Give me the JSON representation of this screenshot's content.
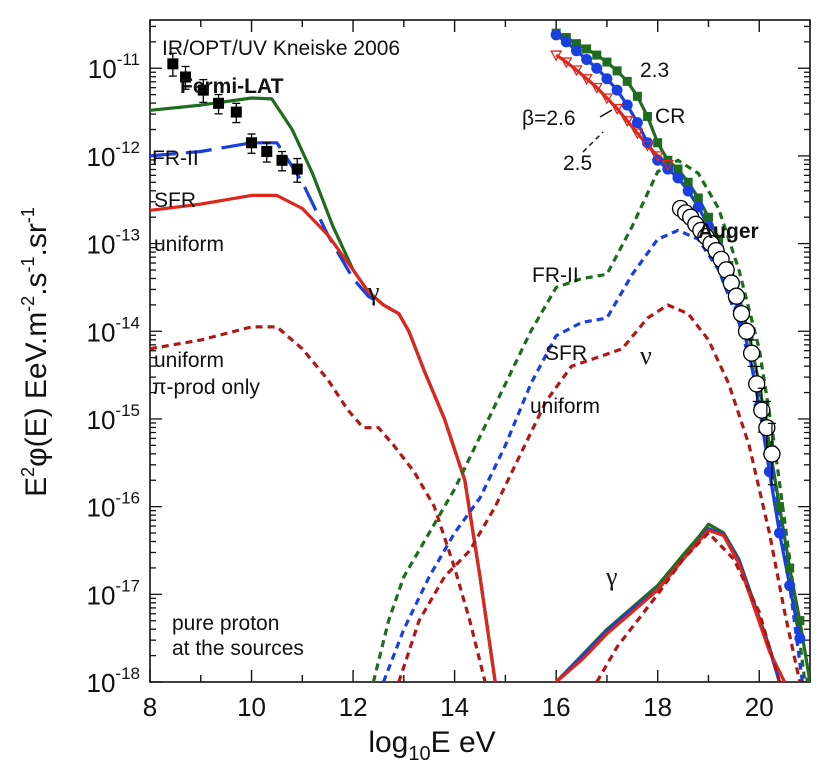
{
  "chart_data": {
    "type": "line",
    "title": "IR/OPT/UV Kneiske 2006",
    "xlabel": "log10E eV",
    "ylabel": "E2φ(E) EeV.m-2.s-1.sr-1",
    "xlim": [
      8,
      21
    ],
    "ylim_log10": [
      -18,
      -10.45
    ],
    "log_y": true,
    "x_ticks": [
      8,
      10,
      12,
      14,
      16,
      18,
      20
    ],
    "y_ticks": [
      {
        "exp": -11,
        "base": "10",
        "power": "-11"
      },
      {
        "exp": -12,
        "base": "10",
        "power": "-12"
      },
      {
        "exp": -13,
        "base": "10",
        "power": "-13"
      },
      {
        "exp": -14,
        "base": "10",
        "power": "-14"
      },
      {
        "exp": -15,
        "base": "10",
        "power": "-15"
      },
      {
        "exp": -16,
        "base": "10",
        "power": "-16"
      },
      {
        "exp": -17,
        "base": "10",
        "power": "-17"
      },
      {
        "exp": -18,
        "base": "10",
        "power": "-18"
      }
    ],
    "colors": {
      "green": "#1f6b1f",
      "blue": "#1a3fe0",
      "red": "#e0261a",
      "darkred": "#b01818",
      "black": "#000000"
    },
    "series": [
      {
        "key": "gamma-fr2",
        "color": "green",
        "dash": "solid",
        "x": [
          8.0,
          9.0,
          10.0,
          10.4,
          10.8,
          11.2,
          11.6,
          12.0,
          12.3,
          12.6,
          12.9,
          13.1,
          13.4,
          13.8,
          14.2,
          14.5,
          14.8
        ],
        "y": [
          -11.48,
          -11.42,
          -11.34,
          -11.35,
          -11.7,
          -12.2,
          -12.8,
          -13.3,
          -13.55,
          -13.7,
          -13.8,
          -14.0,
          -14.45,
          -15.0,
          -15.7,
          -16.8,
          -18.0
        ]
      },
      {
        "key": "gamma-sfr",
        "color": "blue",
        "dash": "longdash",
        "x": [
          8.0,
          9.0,
          10.0,
          10.5,
          11.0,
          11.5,
          12.0,
          12.3,
          12.6,
          12.9,
          13.1,
          13.4,
          13.8,
          14.2,
          14.5,
          14.8
        ],
        "y": [
          -12.0,
          -11.95,
          -11.85,
          -11.85,
          -12.3,
          -12.9,
          -13.4,
          -13.6,
          -13.7,
          -13.8,
          -14.0,
          -14.45,
          -15.0,
          -15.7,
          -16.8,
          -18.0
        ]
      },
      {
        "key": "gamma-uniform",
        "color": "red",
        "dash": "solid",
        "x": [
          8.0,
          9.0,
          10.0,
          10.5,
          11.0,
          11.5,
          12.0,
          12.3,
          12.6,
          12.9,
          13.1,
          13.4,
          13.8,
          14.2,
          14.5,
          14.8
        ],
        "y": [
          -12.62,
          -12.55,
          -12.45,
          -12.45,
          -12.6,
          -12.9,
          -13.3,
          -13.55,
          -13.7,
          -13.8,
          -14.0,
          -14.45,
          -15.0,
          -15.7,
          -16.8,
          -18.0
        ]
      },
      {
        "key": "gamma-piprod",
        "color": "darkred",
        "dash": "shortdash",
        "x": [
          8.0,
          9.0,
          10.0,
          10.5,
          11.0,
          11.5,
          11.9,
          12.2,
          12.5,
          12.8,
          13.2,
          13.6,
          14.0,
          14.3,
          14.6
        ],
        "y": [
          -14.2,
          -14.1,
          -13.95,
          -13.95,
          -14.2,
          -14.55,
          -14.9,
          -15.1,
          -15.1,
          -15.3,
          -15.6,
          -16.0,
          -16.7,
          -17.3,
          -18.0
        ]
      },
      {
        "key": "nu-fr2",
        "color": "green",
        "dash": "shortdash",
        "x": [
          12.4,
          12.7,
          13.0,
          13.5,
          14.0,
          14.5,
          15.0,
          15.5,
          16.0,
          16.5,
          17.0,
          17.5,
          18.0,
          18.4,
          18.8,
          19.2,
          19.6,
          20.0,
          20.3,
          20.6,
          20.9
        ],
        "y": [
          -18.0,
          -17.3,
          -16.8,
          -16.3,
          -15.8,
          -15.2,
          -14.6,
          -14.0,
          -13.5,
          -13.4,
          -13.35,
          -12.8,
          -12.18,
          -12.05,
          -12.2,
          -12.6,
          -13.3,
          -14.2,
          -15.3,
          -16.6,
          -18.0
        ]
      },
      {
        "key": "nu-sfr",
        "color": "blue",
        "dash": "shortdash",
        "x": [
          12.6,
          13.0,
          13.5,
          14.0,
          14.5,
          15.0,
          15.5,
          16.0,
          16.5,
          17.0,
          17.5,
          18.0,
          18.4,
          18.8,
          19.2,
          19.6,
          20.0,
          20.3,
          20.6,
          20.85
        ],
        "y": [
          -18.0,
          -17.4,
          -16.8,
          -16.3,
          -15.9,
          -15.3,
          -14.6,
          -14.05,
          -13.9,
          -13.85,
          -13.35,
          -12.95,
          -12.85,
          -12.95,
          -13.3,
          -13.9,
          -14.7,
          -15.7,
          -16.9,
          -18.0
        ]
      },
      {
        "key": "nu-uniform",
        "color": "darkred",
        "dash": "shortdash",
        "x": [
          12.9,
          13.3,
          13.8,
          14.3,
          14.8,
          15.3,
          15.8,
          16.3,
          16.8,
          17.3,
          17.8,
          18.2,
          18.6,
          19.0,
          19.4,
          19.8,
          20.2,
          20.5,
          20.8
        ],
        "y": [
          -18.0,
          -17.3,
          -16.8,
          -16.5,
          -16.0,
          -15.4,
          -14.8,
          -14.4,
          -14.3,
          -14.2,
          -13.85,
          -13.7,
          -13.8,
          -14.1,
          -14.6,
          -15.3,
          -16.3,
          -17.2,
          -18.0
        ]
      },
      {
        "key": "gamma-hi-green",
        "color": "green",
        "dash": "solid",
        "x": [
          16.0,
          16.5,
          17.0,
          17.5,
          18.0,
          18.5,
          18.8,
          19.0,
          19.3,
          19.6,
          19.9,
          20.2,
          20.4
        ],
        "y": [
          -18.0,
          -17.7,
          -17.4,
          -17.15,
          -16.9,
          -16.55,
          -16.35,
          -16.2,
          -16.3,
          -16.6,
          -17.1,
          -17.6,
          -18.0
        ]
      },
      {
        "key": "gamma-hi-blue",
        "color": "blue",
        "dash": "solid",
        "x": [
          16.0,
          16.5,
          17.0,
          17.5,
          18.0,
          18.5,
          18.8,
          19.0,
          19.3,
          19.6,
          19.9,
          20.2,
          20.4
        ],
        "y": [
          -18.0,
          -17.72,
          -17.42,
          -17.17,
          -16.95,
          -16.6,
          -16.4,
          -16.25,
          -16.32,
          -16.62,
          -17.12,
          -17.62,
          -18.0
        ]
      },
      {
        "key": "gamma-hi-red",
        "color": "red",
        "dash": "solid",
        "x": [
          16.0,
          16.5,
          17.0,
          17.5,
          18.0,
          18.5,
          18.8,
          19.0,
          19.3,
          19.6,
          19.9,
          20.2,
          20.5
        ],
        "y": [
          -18.0,
          -17.75,
          -17.45,
          -17.2,
          -16.95,
          -16.6,
          -16.4,
          -16.27,
          -16.33,
          -16.65,
          -17.15,
          -17.65,
          -18.0
        ]
      },
      {
        "key": "nu-hi-red",
        "color": "darkred",
        "dash": "shortdash",
        "x": [
          16.8,
          17.2,
          17.6,
          18.0,
          18.5,
          19.0,
          19.5,
          20.0,
          20.4
        ],
        "y": [
          -18.0,
          -17.6,
          -17.3,
          -17.0,
          -16.6,
          -16.3,
          -16.6,
          -17.2,
          -18.0
        ]
      },
      {
        "key": "cr-green",
        "color": "green",
        "dash": "solid",
        "markers": "square",
        "x": [
          16.0,
          16.2,
          16.4,
          16.6,
          16.8,
          17.0,
          17.2,
          17.4,
          17.6,
          17.8,
          18.0,
          18.2,
          18.4,
          18.6,
          18.8,
          19.0,
          19.2,
          19.4,
          19.6,
          19.8,
          20.0,
          20.2,
          20.4,
          20.6,
          20.8,
          21.0
        ],
        "y": [
          -10.6,
          -10.65,
          -10.72,
          -10.78,
          -10.85,
          -10.93,
          -11.03,
          -11.15,
          -11.32,
          -11.55,
          -11.85,
          -12.05,
          -12.15,
          -12.3,
          -12.48,
          -12.7,
          -12.95,
          -13.25,
          -13.6,
          -14.05,
          -14.6,
          -15.3,
          -16.0,
          -16.7,
          -17.3,
          -18.0
        ]
      },
      {
        "key": "cr-blue",
        "color": "blue",
        "dash": "solid",
        "markers": "circle",
        "x": [
          16.0,
          16.2,
          16.4,
          16.6,
          16.8,
          17.0,
          17.2,
          17.4,
          17.6,
          17.8,
          18.0,
          18.2,
          18.4,
          18.6,
          18.8,
          19.0,
          19.2,
          19.4,
          19.6,
          19.8,
          20.0,
          20.2,
          20.4,
          20.6,
          20.8
        ],
        "y": [
          -10.62,
          -10.7,
          -10.8,
          -10.9,
          -11.0,
          -11.12,
          -11.25,
          -11.42,
          -11.62,
          -11.85,
          -12.05,
          -12.15,
          -12.25,
          -12.4,
          -12.58,
          -12.8,
          -13.05,
          -13.35,
          -13.75,
          -14.25,
          -14.85,
          -15.6,
          -16.3,
          -16.9,
          -17.5
        ]
      },
      {
        "key": "cr-red",
        "color": "red",
        "dash": "solid",
        "markers": "triangle",
        "x": [
          16.0,
          16.2,
          16.4,
          16.6,
          16.8,
          17.0,
          17.2,
          17.4,
          17.6,
          17.8,
          18.0,
          18.2
        ],
        "y": [
          -10.85,
          -10.93,
          -11.02,
          -11.12,
          -11.22,
          -11.34,
          -11.46,
          -11.6,
          -11.74,
          -11.88,
          -12.0,
          -12.1
        ]
      }
    ],
    "fermi_lat": {
      "x": [
        8.45,
        8.7,
        9.05,
        9.35,
        9.7,
        10.0,
        10.3,
        10.6,
        10.9
      ],
      "y": [
        -10.95,
        -11.1,
        -11.25,
        -11.4,
        -11.5,
        -11.85,
        -11.95,
        -12.05,
        -12.15
      ],
      "err_up": [
        0.12,
        0.12,
        0.12,
        0.1,
        0.1,
        0.1,
        0.1,
        0.1,
        0.12
      ],
      "err_dn": [
        0.14,
        0.14,
        0.14,
        0.12,
        0.12,
        0.12,
        0.12,
        0.12,
        0.15
      ]
    },
    "auger": {
      "x": [
        18.45,
        18.55,
        18.65,
        18.75,
        18.85,
        18.95,
        19.05,
        19.15,
        19.25,
        19.35,
        19.45,
        19.55,
        19.65,
        19.75,
        19.85,
        19.95,
        20.05,
        20.15,
        20.25
      ],
      "y": [
        -12.6,
        -12.65,
        -12.7,
        -12.78,
        -12.85,
        -12.92,
        -13.0,
        -13.08,
        -13.18,
        -13.3,
        -13.45,
        -13.6,
        -13.8,
        -14.0,
        -14.25,
        -14.6,
        -14.9,
        -15.1,
        -15.4
      ]
    },
    "labels": {
      "title": "IR/OPT/UV Kneiske 2006",
      "fermi": "Fermi-LAT",
      "fr2_left": "FR-II",
      "sfr_left": "SFR",
      "uniform_left": "uniform",
      "uniform_pi_1": "uniform",
      "uniform_pi_2": "π-prod only",
      "gamma_mid": "γ",
      "fr2_right": "FR-II",
      "sfr_right": "SFR",
      "uniform_right": "uniform",
      "nu": "ν",
      "gamma_low": "γ",
      "index_23": "2.3",
      "beta": "β=2.6",
      "cr": "CR",
      "index_25": "2.5",
      "auger": "Auger",
      "pure_1": "pure proton",
      "pure_2": "at the sources"
    }
  }
}
